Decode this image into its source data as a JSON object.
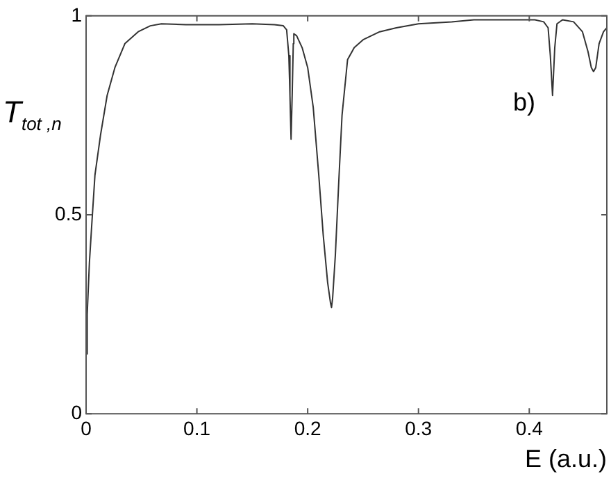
{
  "chart_data": {
    "type": "line",
    "xlabel": "E (a.u.)",
    "ylabel": "T$_{tot ,n}$",
    "annotations": [
      "b)"
    ],
    "xlim": [
      0,
      0.47
    ],
    "ylim": [
      0,
      1
    ],
    "xticks": [
      0,
      0.1,
      0.2,
      0.3,
      0.4
    ],
    "yticks": [
      0,
      0.5,
      1
    ],
    "grid": false,
    "legend": false,
    "marker": "none",
    "line_style": "solid",
    "series": [
      {
        "color": "#333333",
        "x": [
          0,
          0.001,
          0.003,
          0.005,
          0.008,
          0.013,
          0.019,
          0.026,
          0.035,
          0.047,
          0.058,
          0.068,
          0.09,
          0.12,
          0.15,
          0.17,
          0.178,
          0.181,
          0.183,
          0.184,
          0.185,
          0.186,
          0.187,
          0.1875,
          0.19,
          0.195,
          0.2,
          0.205,
          0.21,
          0.214,
          0.218,
          0.2205,
          0.2215,
          0.2225,
          0.225,
          0.228,
          0.231,
          0.236,
          0.242,
          0.25,
          0.265,
          0.28,
          0.3,
          0.33,
          0.35,
          0.38,
          0.405,
          0.413,
          0.417,
          0.419,
          0.421,
          0.423,
          0.425,
          0.43,
          0.44,
          0.448,
          0.453,
          0.456,
          0.458,
          0.46,
          0.463,
          0.467,
          0.47
        ],
        "values": [
          0.15,
          0.25,
          0.38,
          0.47,
          0.6,
          0.7,
          0.8,
          0.87,
          0.93,
          0.96,
          0.975,
          0.98,
          0.978,
          0.978,
          0.98,
          0.978,
          0.975,
          0.965,
          0.9,
          0.8,
          0.69,
          0.8,
          0.93,
          0.955,
          0.95,
          0.92,
          0.87,
          0.77,
          0.6,
          0.45,
          0.33,
          0.28,
          0.267,
          0.29,
          0.4,
          0.58,
          0.75,
          0.89,
          0.92,
          0.94,
          0.96,
          0.97,
          0.98,
          0.985,
          0.99,
          0.99,
          0.99,
          0.985,
          0.97,
          0.9,
          0.8,
          0.92,
          0.98,
          0.99,
          0.985,
          0.96,
          0.91,
          0.87,
          0.86,
          0.87,
          0.93,
          0.96,
          0.97
        ]
      }
    ]
  }
}
